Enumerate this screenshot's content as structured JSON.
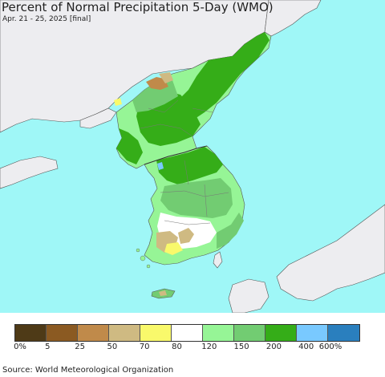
{
  "header": {
    "title": "Percent of Normal Precipitation 5-Day (WMO)",
    "subtitle": "Apr. 21 - 25, 2025 [final]"
  },
  "map": {
    "region": "Korean Peninsula",
    "colors": {
      "sea": "#9ff7f7",
      "land_outside": "#ededf0",
      "border": "#555555"
    }
  },
  "legend": {
    "colors": [
      "#4e3a17",
      "#8b5a22",
      "#c08a4a",
      "#cfba82",
      "#f9f96b",
      "#ffffff",
      "#96f596",
      "#72cc72",
      "#35ad18",
      "#79c9ff",
      "#2a7fbe"
    ],
    "labels": [
      "0%",
      "5",
      "25",
      "50",
      "70",
      "80",
      "120",
      "150",
      "200",
      "400",
      "600%"
    ]
  },
  "footer": {
    "source": "Source: World Meteorological Organization"
  }
}
